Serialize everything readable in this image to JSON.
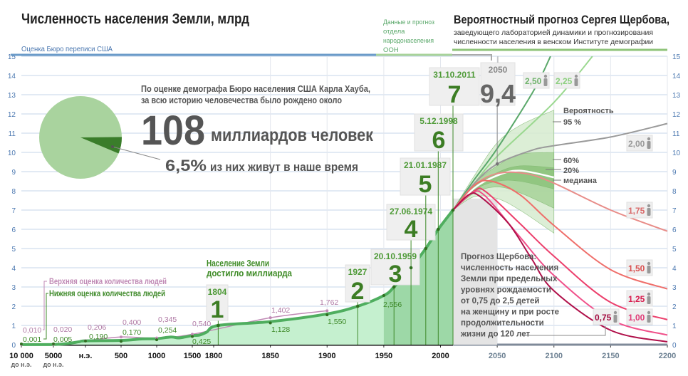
{
  "header": {
    "title": "Численность населения Земли, млрд",
    "census_label": "Оценка Бюро переписи США",
    "un_label": [
      "Данные и прогноз",
      "отдела",
      "народонаселения",
      "ООН"
    ],
    "scherbov_title": "Вероятностный прогноз Сергея Щербова,",
    "scherbov_sub1": "заведующего лабораторией динамики и прогнозирования",
    "scherbov_sub2": "численности населения в венском Институте демографии"
  },
  "colors": {
    "census_blue": "#6b9bc9",
    "un_green": "#a8d39a",
    "scherbov_green": "#8fc47a",
    "history_line": "#4fae5f",
    "history_fill": "#c5f0cf",
    "history_fill_dark": "#8fd09a",
    "upper_estimate": "#c08ab5",
    "lower_estimate": "#3f8a2a",
    "pie_light": "#a9d39e",
    "pie_dark": "#3a7d2a",
    "grid": "#c5d4ea"
  },
  "pie": {
    "line1": "По оценке демографа Бюро населения США Карла Хауба,",
    "line2": "за всю историю человечества было рождено около",
    "big_number": "108",
    "big_unit": "миллиардов человек",
    "share_value": "6,5%",
    "share_text": "из них живут в наше время",
    "share_percent": 6.5
  },
  "annotations": {
    "billion_1": "Население Земли",
    "billion_2": "достигло миллиарда",
    "upper_legend": "Верхняя оценка количества людей",
    "lower_legend": "Нижняя оценка количества людей",
    "probability_title": "Вероятность",
    "p95": "95 %",
    "p60": "60%",
    "p20": "20%",
    "median": "медиана",
    "forecast_note": [
      "Прогноз Щербова:",
      "численность населения",
      "Земли при предельных",
      "уровнях рождаемости",
      "от 0,75 до 2,5 детей",
      "на женщину и при росте",
      "продолжительности",
      "жизни до 120 лет"
    ]
  },
  "chart_data": {
    "type": "line",
    "title": "Численность населения Земли, млрд",
    "ylim": [
      0,
      15
    ],
    "y_ticks": [
      0,
      1,
      2,
      3,
      4,
      5,
      6,
      7,
      8,
      9,
      10,
      11,
      12,
      13,
      14,
      15
    ],
    "grid": true,
    "x_ticks": [
      {
        "year": -10000,
        "label": "10 000",
        "sub": "до н.э."
      },
      {
        "year": -5000,
        "label": "5000",
        "sub": "до н.э."
      },
      {
        "year": 0,
        "label": "н.э.",
        "sub": ""
      },
      {
        "year": 500,
        "label": "500",
        "sub": ""
      },
      {
        "year": 1000,
        "label": "1000",
        "sub": ""
      },
      {
        "year": 1500,
        "label": "1500",
        "sub": ""
      },
      {
        "year": 1800,
        "label": "1800",
        "sub": ""
      },
      {
        "year": 1850,
        "label": "1850",
        "sub": ""
      },
      {
        "year": 1900,
        "label": "1900",
        "sub": ""
      },
      {
        "year": 1950,
        "label": "1950",
        "sub": ""
      },
      {
        "year": 2000,
        "label": "2000",
        "sub": ""
      },
      {
        "year": 2050,
        "label": "2050",
        "sub": "",
        "forecast": true
      },
      {
        "year": 2100,
        "label": "2100",
        "sub": "",
        "forecast": true
      },
      {
        "year": 2150,
        "label": "2150",
        "sub": "",
        "forecast": true
      },
      {
        "year": 2200,
        "label": "2200",
        "sub": "",
        "forecast": true
      }
    ],
    "upper_estimate": [
      {
        "x": -10000,
        "y": 0.01,
        "label": "0,010"
      },
      {
        "x": -5000,
        "y": 0.02,
        "label": "0,020"
      },
      {
        "x": 0,
        "y": 0.206,
        "label": "0,206"
      },
      {
        "x": 500,
        "y": 0.4,
        "label": "0,400"
      },
      {
        "x": 1000,
        "y": 0.345,
        "label": "0,345"
      },
      {
        "x": 1500,
        "y": 0.54,
        "label": "0,540"
      },
      {
        "x": 1850,
        "y": 1.402,
        "label": "1,402"
      },
      {
        "x": 1900,
        "y": 1.762,
        "label": "1,762"
      }
    ],
    "lower_estimate": [
      {
        "x": -10000,
        "y": 0.001,
        "label": "0,001"
      },
      {
        "x": -5000,
        "y": 0.005,
        "label": "0,005"
      },
      {
        "x": 0,
        "y": 0.19,
        "label": "0,190"
      },
      {
        "x": 500,
        "y": 0.17,
        "label": "0,170"
      },
      {
        "x": 1000,
        "y": 0.254,
        "label": "0,254"
      },
      {
        "x": 1500,
        "y": 0.425,
        "label": "0,425"
      },
      {
        "x": 1850,
        "y": 1.128,
        "label": "1,128"
      },
      {
        "x": 1900,
        "y": 1.55,
        "label": "1,550"
      },
      {
        "x": 1950,
        "y": 2.556,
        "label": "2,556"
      }
    ],
    "history": [
      [
        -10000,
        0.003
      ],
      [
        -5000,
        0.01
      ],
      [
        -3000,
        0.05
      ],
      [
        -1000,
        0.15
      ],
      [
        0,
        0.2
      ],
      [
        500,
        0.22
      ],
      [
        800,
        0.3
      ],
      [
        1000,
        0.31
      ],
      [
        1200,
        0.4
      ],
      [
        1300,
        0.35
      ],
      [
        1400,
        0.4
      ],
      [
        1500,
        0.47
      ],
      [
        1600,
        0.5
      ],
      [
        1700,
        0.65
      ],
      [
        1804,
        1
      ],
      [
        1850,
        1.2
      ],
      [
        1900,
        1.6
      ],
      [
        1927,
        2
      ],
      [
        1950,
        2.556
      ],
      [
        1959,
        3
      ],
      [
        1974,
        4
      ],
      [
        1987,
        5
      ],
      [
        1998,
        6
      ],
      [
        2011,
        7
      ]
    ],
    "milestones": [
      {
        "year": 1804,
        "date": "1804",
        "value": 1,
        "big": "1"
      },
      {
        "year": 1927,
        "date": "1927",
        "value": 2,
        "big": "2"
      },
      {
        "year": 1959,
        "date": "20.10.1959",
        "value": 3,
        "big": "3"
      },
      {
        "year": 1974,
        "date": "27.06.1974",
        "value": 4,
        "big": "4"
      },
      {
        "year": 1987,
        "date": "21.01.1987",
        "value": 5,
        "big": "5"
      },
      {
        "year": 1998,
        "date": "5.12.1998",
        "value": 6,
        "big": "6"
      },
      {
        "year": 2011,
        "date": "31.10.2011",
        "value": 7,
        "big": "7"
      },
      {
        "year": 2050,
        "date": "2050",
        "value": 9.4,
        "big": "9,4"
      }
    ],
    "fertility_variants": [
      {
        "name": "2,50",
        "color": "#5aa86a",
        "points": [
          [
            2011,
            7
          ],
          [
            2030,
            8.6
          ],
          [
            2050,
            10.2
          ],
          [
            2082,
            13.2
          ],
          [
            2097,
            15
          ]
        ]
      },
      {
        "name": "2,25",
        "color": "#9ad88f",
        "points": [
          [
            2011,
            7
          ],
          [
            2030,
            8.4
          ],
          [
            2050,
            9.8
          ],
          [
            2100,
            12.6
          ],
          [
            2134,
            15
          ]
        ]
      },
      {
        "name": "2,00",
        "color": "#9a9a9a",
        "points": [
          [
            2011,
            7
          ],
          [
            2030,
            8.4
          ],
          [
            2050,
            9.4
          ],
          [
            2080,
            10.1
          ],
          [
            2100,
            10.35
          ],
          [
            2150,
            10.8
          ],
          [
            2200,
            11.5
          ]
        ]
      },
      {
        "name": "1,75",
        "color": "#e88c88",
        "points": [
          [
            2011,
            7
          ],
          [
            2030,
            8.3
          ],
          [
            2050,
            8.9
          ],
          [
            2075,
            8.9
          ],
          [
            2100,
            8.4
          ],
          [
            2150,
            7.0
          ],
          [
            2200,
            5.9
          ]
        ]
      },
      {
        "name": "1,50",
        "color": "#ef6e6a",
        "points": [
          [
            2011,
            7
          ],
          [
            2030,
            8.3
          ],
          [
            2045,
            8.5
          ],
          [
            2070,
            7.8
          ],
          [
            2100,
            6.2
          ],
          [
            2150,
            3.9
          ],
          [
            2200,
            2.9
          ]
        ]
      },
      {
        "name": "1,25",
        "color": "#ec3f6c",
        "points": [
          [
            2011,
            7
          ],
          [
            2030,
            8.0
          ],
          [
            2040,
            7.95
          ],
          [
            2070,
            6.3
          ],
          [
            2100,
            4.6
          ],
          [
            2150,
            2.2
          ],
          [
            2200,
            1.3
          ]
        ]
      },
      {
        "name": "1,00",
        "color": "#f0508a",
        "points": [
          [
            2011,
            7
          ],
          [
            2028,
            7.9
          ],
          [
            2040,
            7.7
          ],
          [
            2070,
            5.6
          ],
          [
            2100,
            3.6
          ],
          [
            2150,
            1.3
          ],
          [
            2200,
            0.5
          ]
        ]
      },
      {
        "name": "0,75",
        "color": "#b0104a",
        "points": [
          [
            2011,
            7
          ],
          [
            2025,
            7.8
          ],
          [
            2035,
            7.7
          ],
          [
            2060,
            6.3
          ],
          [
            2080,
            4.5
          ],
          [
            2100,
            2.8
          ],
          [
            2150,
            0.75
          ],
          [
            2200,
            0.15
          ]
        ]
      }
    ],
    "probability_bands": [
      {
        "name": "95 %",
        "upper": [
          [
            2011,
            7
          ],
          [
            2030,
            8.8
          ],
          [
            2050,
            10.5
          ],
          [
            2070,
            11.4
          ],
          [
            2100,
            12.2
          ]
        ],
        "lower": [
          [
            2011,
            7
          ],
          [
            2030,
            7.7
          ],
          [
            2050,
            7.6
          ],
          [
            2070,
            7.0
          ],
          [
            2100,
            5.8
          ]
        ]
      },
      {
        "name": "60%",
        "upper": [
          [
            2011,
            7
          ],
          [
            2030,
            8.4
          ],
          [
            2050,
            9.3
          ],
          [
            2070,
            9.9
          ],
          [
            2100,
            10.0
          ]
        ],
        "lower": [
          [
            2011,
            7
          ],
          [
            2030,
            7.9
          ],
          [
            2050,
            8.2
          ],
          [
            2070,
            7.9
          ],
          [
            2100,
            7.1
          ]
        ]
      },
      {
        "name": "20%",
        "upper": [
          [
            2011,
            7
          ],
          [
            2030,
            8.25
          ],
          [
            2050,
            8.95
          ],
          [
            2070,
            9.3
          ],
          [
            2100,
            9.2
          ]
        ],
        "lower": [
          [
            2011,
            7
          ],
          [
            2030,
            8.05
          ],
          [
            2050,
            8.5
          ],
          [
            2070,
            8.5
          ],
          [
            2100,
            8.1
          ]
        ]
      }
    ],
    "median": [
      [
        2011,
        7
      ],
      [
        2030,
        8.15
      ],
      [
        2050,
        8.8
      ],
      [
        2070,
        9.05
      ],
      [
        2100,
        8.7
      ]
    ]
  }
}
